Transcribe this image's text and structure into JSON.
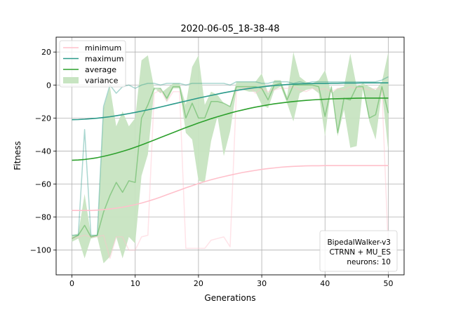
{
  "chart_data": {
    "type": "line",
    "title": "2020-06-05_18-38-48",
    "xlabel": "Generations",
    "ylabel": "Fitness",
    "xlim": [
      -2.5,
      52.5
    ],
    "ylim": [
      -115,
      29
    ],
    "xticks": [
      0,
      10,
      20,
      30,
      40,
      50
    ],
    "yticks": [
      20,
      0,
      -20,
      -40,
      -60,
      -80,
      -100
    ],
    "grid": true,
    "legend_position": "top-left",
    "legend": [
      {
        "label": "minimum",
        "color": "#ffc0cb",
        "kind": "line"
      },
      {
        "label": "maximum",
        "color": "#2a9a8a",
        "kind": "line"
      },
      {
        "label": "average",
        "color": "#2ca02c",
        "kind": "line"
      },
      {
        "label": "variance",
        "color": "#c7e4c1",
        "kind": "patch"
      }
    ],
    "info_box": {
      "lines": [
        "BipedalWalker-v3",
        "CTRNN + MU_ES",
        "neurons: 10"
      ],
      "position": "bottom-right"
    },
    "x": [
      0,
      1,
      2,
      3,
      4,
      5,
      6,
      7,
      8,
      9,
      10,
      11,
      12,
      13,
      14,
      15,
      16,
      17,
      18,
      19,
      20,
      21,
      22,
      23,
      24,
      25,
      26,
      27,
      28,
      29,
      30,
      31,
      32,
      33,
      34,
      35,
      36,
      37,
      38,
      39,
      40,
      41,
      42,
      43,
      44,
      45,
      46,
      47,
      48,
      49,
      50
    ],
    "series": [
      {
        "name": "minimum",
        "role": "raw",
        "color": "#ffc0cb",
        "values": [
          -93,
          -92,
          -91,
          -92,
          -92,
          -91,
          -105,
          -92,
          -92,
          -100,
          -100,
          -92,
          -91,
          -5,
          -3,
          -10,
          -4,
          -4,
          -99,
          -99,
          -99,
          -99,
          -94,
          -93,
          -92,
          -98,
          -4,
          -2,
          -1,
          -5,
          -2,
          -4,
          -3,
          -2,
          -2,
          -1,
          -3,
          -4,
          -2,
          -3,
          -2,
          -4,
          -2,
          -3,
          -1,
          -2,
          -2,
          -3,
          -2,
          -3,
          -100
        ]
      },
      {
        "name": "maximum",
        "role": "raw",
        "color": "#2a9a8a",
        "values": [
          -91,
          -91,
          -27,
          -91,
          -91,
          -13,
          0,
          -5,
          -1,
          0,
          -2,
          0,
          1,
          1,
          0,
          1,
          1,
          1,
          0,
          1,
          1,
          1,
          1,
          1,
          1,
          0,
          2,
          2,
          2,
          2,
          1,
          1,
          2,
          2,
          2,
          1,
          2,
          1,
          2,
          2,
          2,
          2,
          2,
          2,
          2,
          2,
          2,
          2,
          2,
          3,
          5
        ]
      },
      {
        "name": "average",
        "role": "raw",
        "color": "#2ca02c",
        "values": [
          -93,
          -91,
          -85,
          -92,
          -91,
          -77,
          -67,
          -59,
          -65,
          -58,
          -59,
          -20,
          -12,
          -2,
          -2,
          -8,
          -1,
          -1,
          -20,
          -11,
          -20,
          -20,
          -10,
          -10,
          -11,
          -13,
          -1,
          -1,
          -1,
          -1,
          -2,
          -9,
          0,
          1,
          -9,
          0,
          0,
          0,
          0,
          -1,
          -19,
          -1,
          -29,
          -8,
          -9,
          -1,
          -1,
          -20,
          -18,
          -1,
          -17
        ]
      },
      {
        "name": "minimum",
        "role": "smoothed",
        "color": "#ffc0cb",
        "values": [
          -76,
          -76,
          -76,
          -76,
          -75.8,
          -75.5,
          -75.1,
          -74.6,
          -74,
          -73.3,
          -72.5,
          -71.5,
          -70.4,
          -69.2,
          -67.9,
          -66.5,
          -65.1,
          -63.7,
          -62.3,
          -61,
          -59.7,
          -58.5,
          -57.4,
          -56.4,
          -55.5,
          -54.6,
          -53.8,
          -53,
          -52.3,
          -51.7,
          -51.1,
          -50.6,
          -50.2,
          -49.8,
          -49.5,
          -49.3,
          -49.1,
          -49,
          -48.9,
          -48.9,
          -48.8,
          -48.8,
          -48.8,
          -48.8,
          -48.8,
          -48.8,
          -48.8,
          -48.8,
          -48.8,
          -48.8,
          -48.8
        ]
      },
      {
        "name": "maximum",
        "role": "smoothed",
        "color": "#2a9a8a",
        "values": [
          -21,
          -20.9,
          -20.7,
          -20.4,
          -20.1,
          -19.7,
          -19.2,
          -18.6,
          -18,
          -17.3,
          -16.6,
          -15.8,
          -15,
          -14.2,
          -13.3,
          -12.4,
          -11.5,
          -10.6,
          -9.7,
          -8.8,
          -7.9,
          -7.1,
          -6.3,
          -5.5,
          -4.7,
          -4,
          -3.3,
          -2.7,
          -2.1,
          -1.6,
          -1.1,
          -0.7,
          -0.3,
          0,
          0.3,
          0.5,
          0.7,
          0.8,
          0.9,
          1,
          1,
          1.1,
          1.1,
          1.2,
          1.2,
          1.2,
          1.3,
          1.3,
          1.3,
          1.3,
          1.3
        ]
      },
      {
        "name": "average",
        "role": "smoothed",
        "color": "#2ca02c",
        "values": [
          -45.6,
          -45.4,
          -45.1,
          -44.6,
          -44,
          -43.2,
          -42.3,
          -41.3,
          -40.2,
          -39,
          -37.7,
          -36.3,
          -34.8,
          -33.3,
          -31.8,
          -30.3,
          -28.8,
          -27.3,
          -25.8,
          -24.4,
          -23,
          -21.7,
          -20.4,
          -19.2,
          -18.1,
          -17,
          -16,
          -15.1,
          -14.2,
          -13.4,
          -12.7,
          -12,
          -11.4,
          -10.9,
          -10.4,
          -10,
          -9.6,
          -9.3,
          -9,
          -8.8,
          -8.6,
          -8.4,
          -8.3,
          -8.2,
          -8.1,
          -8,
          -7.9,
          -7.9,
          -7.9,
          -7.9,
          -7.9
        ]
      },
      {
        "name": "variance",
        "role": "band",
        "color": "#c7e4c1",
        "upper": [
          -91,
          -90,
          -66,
          -91,
          -91,
          -14,
          -1,
          -25,
          -16,
          -25,
          -20,
          15,
          18,
          -2,
          -5,
          -2,
          1,
          1,
          -12,
          11,
          18,
          -12,
          -4,
          -6,
          -11,
          -13,
          2,
          2,
          2,
          2,
          7,
          -5,
          3,
          3,
          -7,
          20,
          5,
          2,
          1,
          3,
          9,
          -5,
          -2,
          -1,
          19,
          -1,
          1,
          -1,
          -3,
          2,
          20
        ]
      },
      {
        "name": "variance",
        "role": "band_lower",
        "color": "#c7e4c1",
        "lower": [
          -95,
          -93,
          -105,
          -93,
          -92,
          -108,
          -104,
          -92,
          -105,
          -92,
          -96,
          -55,
          -42,
          -3,
          -2,
          -10,
          -2,
          -2,
          -29,
          -33,
          -58,
          -59,
          -34,
          -19,
          -43,
          -28,
          -3,
          -3,
          -4,
          -4,
          -12,
          -14,
          -3,
          -1,
          -11,
          -22,
          -5,
          -3,
          -2,
          -5,
          -31,
          -1,
          -31,
          -15,
          -38,
          -37,
          -2,
          -22,
          -33,
          -4,
          -40
        ]
      }
    ]
  }
}
